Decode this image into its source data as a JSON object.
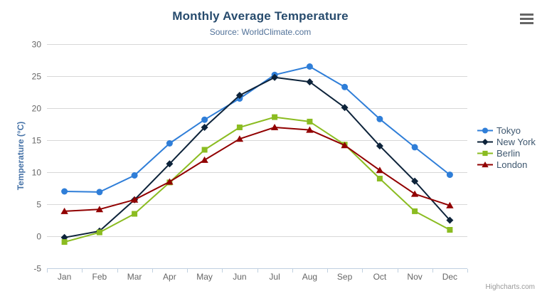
{
  "chart_data": {
    "type": "line",
    "title": "Monthly Average Temperature",
    "subtitle": "Source: WorldClimate.com",
    "ylabel": "Temperature (°C)",
    "xlabel": "",
    "categories": [
      "Jan",
      "Feb",
      "Mar",
      "Apr",
      "May",
      "Jun",
      "Jul",
      "Aug",
      "Sep",
      "Oct",
      "Nov",
      "Dec"
    ],
    "ylim": [
      -5,
      30
    ],
    "yticks": [
      -5,
      0,
      5,
      10,
      15,
      20,
      25,
      30
    ],
    "grid": true,
    "legend_position": "right",
    "series": [
      {
        "name": "Tokyo",
        "color": "#2f7ed8",
        "marker": "circle",
        "values": [
          7.0,
          6.9,
          9.5,
          14.5,
          18.2,
          21.5,
          25.2,
          26.5,
          23.3,
          18.3,
          13.9,
          9.6
        ]
      },
      {
        "name": "New York",
        "color": "#0d233a",
        "marker": "diamond",
        "values": [
          -0.2,
          0.8,
          5.7,
          11.3,
          17.0,
          22.0,
          24.8,
          24.1,
          20.1,
          14.1,
          8.6,
          2.5
        ]
      },
      {
        "name": "Berlin",
        "color": "#8bbc21",
        "marker": "square",
        "values": [
          -0.9,
          0.6,
          3.5,
          8.4,
          13.5,
          17.0,
          18.6,
          17.9,
          14.3,
          9.0,
          3.9,
          1.0
        ]
      },
      {
        "name": "London",
        "color": "#910000",
        "marker": "triangle",
        "values": [
          3.9,
          4.2,
          5.7,
          8.5,
          11.9,
          15.2,
          17.0,
          16.6,
          14.2,
          10.3,
          6.6,
          4.8
        ]
      }
    ]
  },
  "credits": {
    "label": "Highcharts.com"
  },
  "context_menu": {
    "icon": "hamburger-menu-icon"
  },
  "colors": {
    "grid": "#d8d8d8",
    "axis_line": "#c0d0e0",
    "tick_label": "#666666",
    "title": "#274b6d",
    "subtitle": "#527299",
    "axis_title": "#4572a7",
    "legend_text": "#3e576f",
    "menu_icon": "#666666"
  }
}
